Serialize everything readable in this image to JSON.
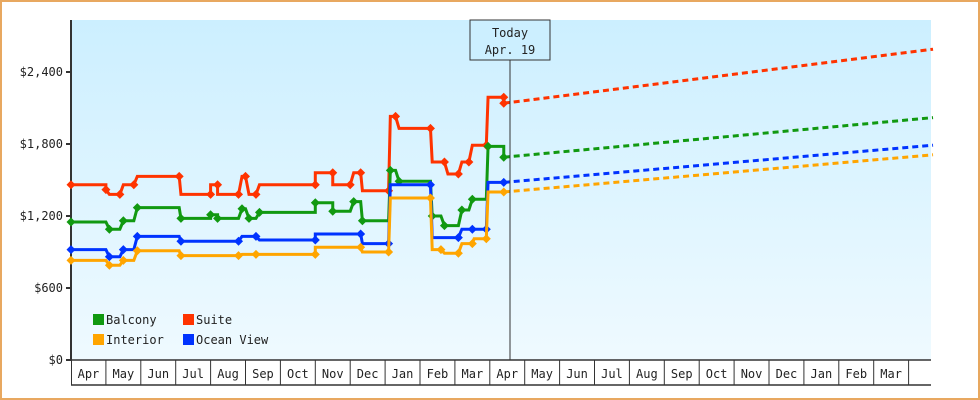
{
  "chart_data": {
    "type": "line",
    "title": "",
    "xlabel": "",
    "ylabel": "",
    "ylim": [
      0,
      2700
    ],
    "yticks": [
      {
        "value": 0,
        "label": "$0"
      },
      {
        "value": 600,
        "label": "$600"
      },
      {
        "value": 1200,
        "label": "$1,200"
      },
      {
        "value": 1800,
        "label": "$1,800"
      },
      {
        "value": 2400,
        "label": "$2,400"
      }
    ],
    "x_months": [
      "Apr",
      "May",
      "Jun",
      "Jul",
      "Aug",
      "Sep",
      "Oct",
      "Nov",
      "Dec",
      "Jan",
      "Feb",
      "Mar",
      "Apr",
      "May",
      "Jun",
      "Jul",
      "Aug",
      "Sep",
      "Oct",
      "Nov",
      "Dec",
      "Jan",
      "Feb",
      "Mar"
    ],
    "today_marker": {
      "line1": "Today",
      "line2": "Apr. 19"
    },
    "legend": [
      {
        "name": "Balcony",
        "color": "#119911"
      },
      {
        "name": "Suite",
        "color": "#ff3300"
      },
      {
        "name": "Interior",
        "color": "#ffa500"
      },
      {
        "name": "Ocean View",
        "color": "#0033ff"
      }
    ],
    "series": [
      {
        "name": "Suite",
        "color": "#ff3300",
        "history": [
          [
            0,
            1460
          ],
          [
            1,
            1460
          ],
          [
            1,
            1420
          ],
          [
            1.1,
            1380
          ],
          [
            1.4,
            1380
          ],
          [
            1.5,
            1460
          ],
          [
            1.8,
            1460
          ],
          [
            1.9,
            1530
          ],
          [
            3.1,
            1530
          ],
          [
            3.15,
            1380
          ],
          [
            4,
            1380
          ],
          [
            4,
            1460
          ],
          [
            4.2,
            1460
          ],
          [
            4.2,
            1380
          ],
          [
            4.8,
            1380
          ],
          [
            4.9,
            1530
          ],
          [
            5,
            1530
          ],
          [
            5.1,
            1380
          ],
          [
            5.3,
            1380
          ],
          [
            5.4,
            1460
          ],
          [
            7,
            1460
          ],
          [
            7,
            1560
          ],
          [
            7.5,
            1560
          ],
          [
            7.5,
            1460
          ],
          [
            8,
            1460
          ],
          [
            8.1,
            1560
          ],
          [
            8.3,
            1560
          ],
          [
            8.35,
            1410
          ],
          [
            9.1,
            1410
          ],
          [
            9.15,
            2030
          ],
          [
            9.3,
            2030
          ],
          [
            9.4,
            1930
          ],
          [
            10.3,
            1930
          ],
          [
            10.35,
            1650
          ],
          [
            10.7,
            1650
          ],
          [
            10.8,
            1550
          ],
          [
            11.1,
            1550
          ],
          [
            11.2,
            1650
          ],
          [
            11.4,
            1650
          ],
          [
            11.5,
            1790
          ],
          [
            11.9,
            1790
          ],
          [
            11.95,
            2190
          ],
          [
            12.4,
            2190
          ],
          [
            12.4,
            2140
          ]
        ],
        "forecast": [
          [
            12.4,
            2140
          ],
          [
            24.7,
            2590
          ]
        ]
      },
      {
        "name": "Balcony",
        "color": "#119911",
        "history": [
          [
            0,
            1150
          ],
          [
            1,
            1150
          ],
          [
            1.1,
            1090
          ],
          [
            1.4,
            1090
          ],
          [
            1.5,
            1160
          ],
          [
            1.8,
            1160
          ],
          [
            1.9,
            1270
          ],
          [
            3.1,
            1270
          ],
          [
            3.15,
            1180
          ],
          [
            4,
            1180
          ],
          [
            4,
            1210
          ],
          [
            4.2,
            1210
          ],
          [
            4.2,
            1180
          ],
          [
            4.8,
            1180
          ],
          [
            4.9,
            1260
          ],
          [
            5,
            1260
          ],
          [
            5.1,
            1180
          ],
          [
            5.3,
            1180
          ],
          [
            5.4,
            1230
          ],
          [
            7,
            1230
          ],
          [
            7,
            1310
          ],
          [
            7.5,
            1310
          ],
          [
            7.5,
            1240
          ],
          [
            8,
            1240
          ],
          [
            8.1,
            1320
          ],
          [
            8.3,
            1320
          ],
          [
            8.35,
            1160
          ],
          [
            9.1,
            1160
          ],
          [
            9.15,
            1580
          ],
          [
            9.3,
            1580
          ],
          [
            9.4,
            1490
          ],
          [
            10.3,
            1490
          ],
          [
            10.35,
            1200
          ],
          [
            10.6,
            1200
          ],
          [
            10.7,
            1120
          ],
          [
            11.1,
            1120
          ],
          [
            11.2,
            1250
          ],
          [
            11.4,
            1250
          ],
          [
            11.5,
            1340
          ],
          [
            11.9,
            1340
          ],
          [
            11.95,
            1780
          ],
          [
            12.4,
            1780
          ],
          [
            12.4,
            1690
          ]
        ],
        "forecast": [
          [
            12.4,
            1690
          ],
          [
            24.7,
            2020
          ]
        ]
      },
      {
        "name": "Ocean View",
        "color": "#0033ff",
        "history": [
          [
            0,
            920
          ],
          [
            1,
            920
          ],
          [
            1.1,
            860
          ],
          [
            1.4,
            860
          ],
          [
            1.5,
            920
          ],
          [
            1.8,
            920
          ],
          [
            1.9,
            1030
          ],
          [
            3.1,
            1030
          ],
          [
            3.15,
            990
          ],
          [
            4,
            990
          ],
          [
            4.8,
            990
          ],
          [
            4.9,
            1030
          ],
          [
            5.3,
            1030
          ],
          [
            5.4,
            1000
          ],
          [
            7,
            1000
          ],
          [
            7,
            1050
          ],
          [
            8.3,
            1050
          ],
          [
            8.35,
            970
          ],
          [
            9.1,
            970
          ],
          [
            9.15,
            1460
          ],
          [
            10.3,
            1460
          ],
          [
            10.35,
            1020
          ],
          [
            11.1,
            1020
          ],
          [
            11.2,
            1090
          ],
          [
            11.5,
            1090
          ],
          [
            11.55,
            1090
          ],
          [
            11.9,
            1090
          ],
          [
            11.95,
            1480
          ],
          [
            12.4,
            1480
          ]
        ],
        "forecast": [
          [
            12.4,
            1480
          ],
          [
            24.7,
            1790
          ]
        ]
      },
      {
        "name": "Interior",
        "color": "#ffa500",
        "history": [
          [
            0,
            830
          ],
          [
            1,
            830
          ],
          [
            1.1,
            790
          ],
          [
            1.4,
            790
          ],
          [
            1.5,
            830
          ],
          [
            1.8,
            830
          ],
          [
            1.9,
            910
          ],
          [
            3.1,
            910
          ],
          [
            3.15,
            870
          ],
          [
            4,
            870
          ],
          [
            4.8,
            870
          ],
          [
            4.9,
            880
          ],
          [
            5.3,
            880
          ],
          [
            5.4,
            880
          ],
          [
            7,
            880
          ],
          [
            7,
            940
          ],
          [
            8.3,
            940
          ],
          [
            8.35,
            900
          ],
          [
            9.1,
            900
          ],
          [
            9.15,
            1350
          ],
          [
            10.3,
            1350
          ],
          [
            10.35,
            920
          ],
          [
            10.6,
            920
          ],
          [
            10.7,
            890
          ],
          [
            11.1,
            890
          ],
          [
            11.2,
            970
          ],
          [
            11.5,
            970
          ],
          [
            11.55,
            1010
          ],
          [
            11.9,
            1010
          ],
          [
            11.95,
            1400
          ],
          [
            12.4,
            1400
          ]
        ],
        "forecast": [
          [
            12.4,
            1400
          ],
          [
            24.7,
            1710
          ]
        ]
      }
    ]
  }
}
